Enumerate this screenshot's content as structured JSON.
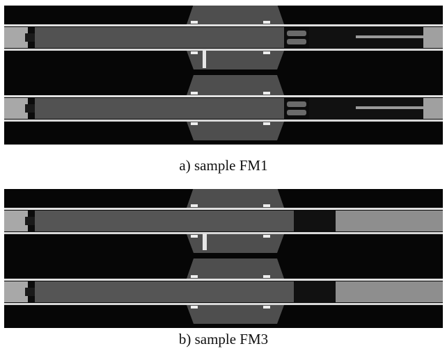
{
  "panels": [
    {
      "caption": "a) sample FM1"
    },
    {
      "caption": "b) sample FM3"
    }
  ]
}
